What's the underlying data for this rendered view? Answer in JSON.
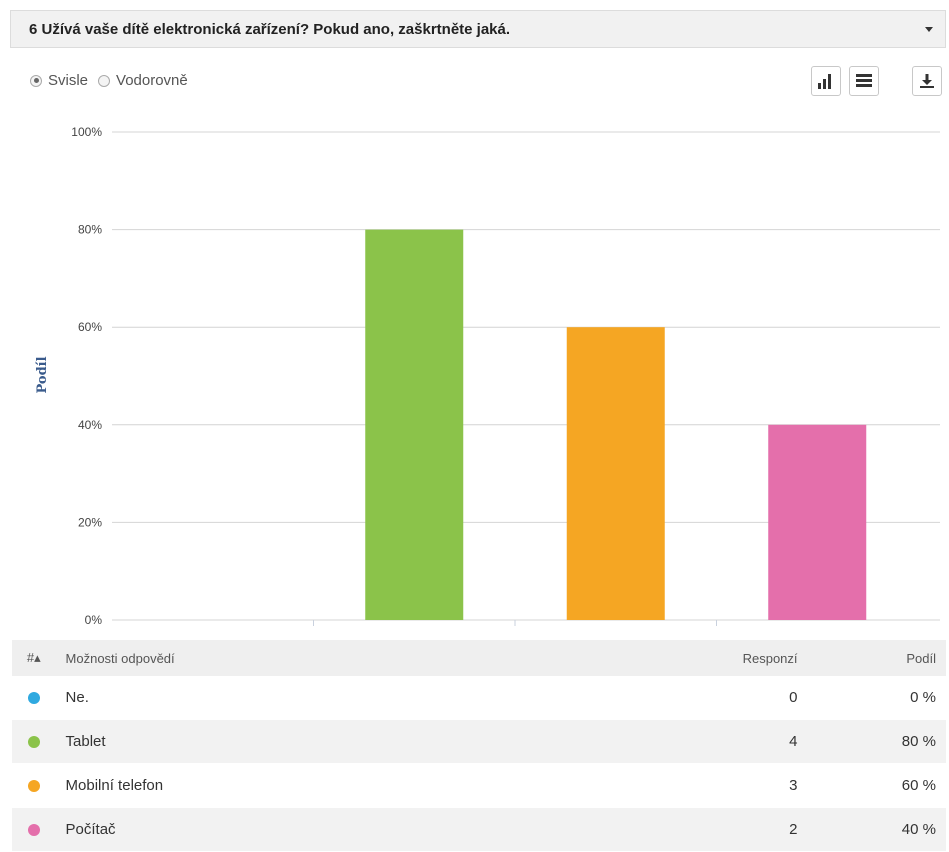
{
  "question": {
    "title": "6 Užívá vaše dítě elektronická zařízení? Pokud ano, zaškrtněte jaká.",
    "collapse_icon": "caret-down-icon"
  },
  "orientation": {
    "vertical_label": "Svisle",
    "horizontal_label": "Vodorovně",
    "selected": "vertical"
  },
  "toolbar": {
    "chart_icon": "bar-chart-icon",
    "table_icon": "table-icon",
    "download_icon": "download-icon"
  },
  "chart_data": {
    "type": "bar",
    "categories": [
      "Ne.",
      "Tablet",
      "Mobilní telefon",
      "Počítač"
    ],
    "values": [
      0,
      80,
      60,
      40
    ],
    "ylabel": "Podíl",
    "ylim": [
      0,
      100
    ],
    "yticks": [
      "0%",
      "20%",
      "40%",
      "60%",
      "80%",
      "100%"
    ],
    "colors": [
      "#2fa9e0",
      "#8bc34a",
      "#f5a623",
      "#e46fab"
    ],
    "grid": true
  },
  "table": {
    "headers": {
      "hash": "#▴",
      "options": "Možnosti odpovědí",
      "responses": "Responzí",
      "share": "Podíl"
    },
    "rows": [
      {
        "label": "Ne.",
        "responses": "0",
        "share": "0 %",
        "color": "#2fa9e0"
      },
      {
        "label": "Tablet",
        "responses": "4",
        "share": "80 %",
        "color": "#8bc34a"
      },
      {
        "label": "Mobilní telefon",
        "responses": "3",
        "share": "60 %",
        "color": "#f5a623"
      },
      {
        "label": "Počítač",
        "responses": "2",
        "share": "40 %",
        "color": "#e46fab"
      }
    ]
  }
}
